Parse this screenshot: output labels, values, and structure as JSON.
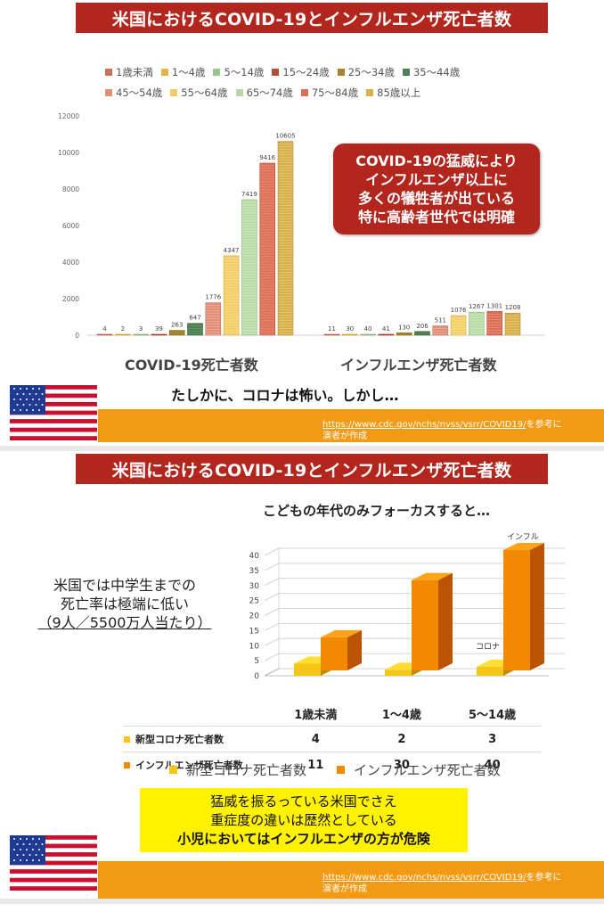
{
  "slide1": {
    "title": "米国におけるCOVID-19とインフルエンザ死亡者数",
    "callout_lines": [
      "COVID-19の猛威により",
      "インフルエンザ以上に",
      "多くの犠牲者が出ている",
      "特に高齢者世代では明確"
    ],
    "caption": "たしかに、コロナは怖い。しかし…",
    "source_url": "https://www.cdc.gov/nchs/nvss/vsrr/COVID19/",
    "source_suffix": "を参考に",
    "source_line2": "演者が作成"
  },
  "slide2": {
    "title": "米国におけるCOVID-19とインフルエンザ死亡者数",
    "heading": "こどもの年代のみフォーカスすると…",
    "note_line1": "米国では中学生までの",
    "note_line2": "死亡率は極端に低い",
    "note_line3": "（9人／5500万人当たり）",
    "message_line1": "猛威を振るっている米国でさえ",
    "message_line2": "重症度の違いは歴然としている",
    "message_line3": "小児においてはインフルエンザの方が危険",
    "source_url": "https://www.cdc.gov/nchs/nvss/vsrr/COVID19/",
    "source_suffix": "を参考に",
    "source_line2": "演者が作成"
  },
  "chart_data": [
    {
      "type": "bar",
      "groups": [
        "COVID-19死亡者数",
        "インフルエンザ死亡者数"
      ],
      "series": [
        {
          "name": "1歳未満",
          "color": "#c9745a",
          "values": [
            4,
            11
          ]
        },
        {
          "name": "1～4歳",
          "color": "#e3b34a",
          "values": [
            2,
            30
          ]
        },
        {
          "name": "5～14歳",
          "color": "#9bc48a",
          "values": [
            3,
            40
          ]
        },
        {
          "name": "15～24歳",
          "color": "#b34d3b",
          "values": [
            39,
            41
          ]
        },
        {
          "name": "25～34歳",
          "color": "#a3862f",
          "values": [
            263,
            130
          ]
        },
        {
          "name": "35～44歳",
          "color": "#4f7f52",
          "values": [
            647,
            206
          ]
        },
        {
          "name": "45～54歳",
          "color": "#e08f79",
          "values": [
            1776,
            511
          ]
        },
        {
          "name": "55～64歳",
          "color": "#f2cc6a",
          "values": [
            4347,
            1076
          ]
        },
        {
          "name": "65～74歳",
          "color": "#b6d8a6",
          "values": [
            7419,
            1267
          ]
        },
        {
          "name": "75～84歳",
          "color": "#d9715a",
          "values": [
            9416,
            1301
          ]
        },
        {
          "name": "85歳以上",
          "color": "#d6b04f",
          "values": [
            10605,
            1208
          ]
        }
      ],
      "yticks": [
        0,
        2000,
        4000,
        6000,
        8000,
        10000,
        12000
      ],
      "ylim": [
        0,
        12000
      ]
    },
    {
      "type": "bar",
      "categories": [
        "1歳未満",
        "1～4歳",
        "5～14歳"
      ],
      "series": [
        {
          "name": "新型コロナ死亡者数",
          "color": "#f5c518",
          "values": [
            4,
            2,
            3
          ]
        },
        {
          "name": "インフルエンザ死亡者数",
          "color": "#f28a00",
          "values": [
            11,
            30,
            40
          ]
        }
      ],
      "annotations": {
        "corona": "コロナ",
        "influ": "インフル"
      },
      "yticks": [
        0,
        5,
        10,
        15,
        20,
        25,
        30,
        35,
        40
      ],
      "ylim": [
        0,
        40
      ]
    }
  ]
}
